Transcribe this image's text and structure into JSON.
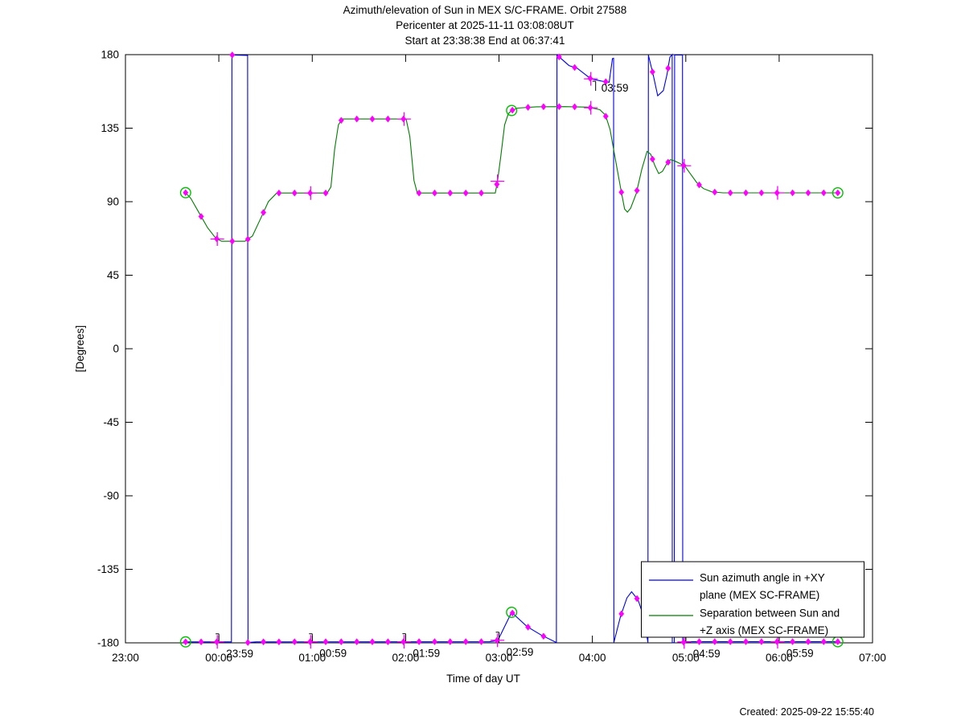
{
  "title": {
    "line1": "Azimuth/elevation of Sun in MEX S/C-FRAME.  Orbit 27588",
    "line2": "Pericenter at 2025-11-11 03:08:08UT",
    "line3": "Start at 23:38:38 End at 06:37:41"
  },
  "footer": {
    "created": "Created: 2025-09-22 15:55:40"
  },
  "chart_data": {
    "type": "line",
    "xlabel": "Time of day UT",
    "ylabel": "[Degrees]",
    "x_axis_hours_span": 8,
    "x_tick_hours": [
      0,
      1,
      2,
      3,
      4,
      5,
      6,
      7,
      8
    ],
    "x_tick_labels": [
      "23:00",
      "00:00",
      "01:00",
      "02:00",
      "03:00",
      "04:00",
      "05:00",
      "06:00",
      "07:00"
    ],
    "ylim": [
      -180,
      180
    ],
    "y_ticks": [
      -180,
      -135,
      -90,
      -45,
      0,
      45,
      90,
      135,
      180
    ],
    "colors": {
      "azimuth": "#0000ee",
      "separation": "#007d00",
      "marker": "#ff00ff",
      "event": "#00c000"
    },
    "series": [
      {
        "name": "azimuth",
        "legend": [
          "Sun azimuth angle in +XY",
          "plane (MEX SC-FRAME)"
        ],
        "color_key": "azimuth",
        "points": [
          [
            0.644,
            -179.4
          ],
          [
            1.135,
            -179.4
          ],
          [
            1.14,
            179.8
          ],
          [
            1.308,
            179.5
          ],
          [
            1.312,
            -179.8
          ],
          [
            1.4,
            -179.4
          ],
          [
            3.9,
            -179.3
          ],
          [
            3.955,
            -178.9
          ],
          [
            3.99,
            -178.3
          ],
          [
            4.1356,
            -161.3
          ],
          [
            4.3,
            -170
          ],
          [
            4.45,
            -175.2
          ],
          [
            4.615,
            -179.8
          ],
          [
            4.621,
            179.8
          ],
          [
            4.75,
            173.3
          ],
          [
            4.84,
            171.6
          ],
          [
            4.9833,
            165.2
          ],
          [
            5.1,
            163.8
          ],
          [
            5.18,
            163.1
          ],
          [
            5.215,
            177.6
          ],
          [
            5.227,
            177.8
          ],
          [
            5.231,
            -179.7
          ],
          [
            5.3,
            -164
          ],
          [
            5.37,
            -152.5
          ],
          [
            5.42,
            -148.7
          ],
          [
            5.49,
            -153.8
          ],
          [
            5.55,
            -164
          ],
          [
            5.595,
            -179.7
          ],
          [
            5.6,
            179.7
          ],
          [
            5.65,
            168
          ],
          [
            5.7,
            154.8
          ],
          [
            5.76,
            158
          ],
          [
            5.8,
            168
          ],
          [
            5.83,
            178.4
          ],
          [
            5.855,
            180
          ],
          [
            5.856,
            -180
          ],
          [
            5.877,
            -179.8
          ],
          [
            5.881,
            179.8
          ],
          [
            5.965,
            179.8
          ],
          [
            5.968,
            -179.8
          ],
          [
            5.99,
            -179.3
          ],
          [
            7.6281,
            -179.3
          ]
        ]
      },
      {
        "name": "separation",
        "legend": [
          "Separation between Sun and",
          "+Z axis (MEX SC-FRAME)"
        ],
        "color_key": "separation",
        "points": [
          [
            0.644,
            95.5
          ],
          [
            0.7,
            92
          ],
          [
            0.78,
            84
          ],
          [
            0.88,
            74
          ],
          [
            0.97,
            67.5
          ],
          [
            1.03,
            65.8
          ],
          [
            1.28,
            65.8
          ],
          [
            1.36,
            69
          ],
          [
            1.45,
            80
          ],
          [
            1.53,
            90
          ],
          [
            1.62,
            95.3
          ],
          [
            2.16,
            95.3
          ],
          [
            2.2,
            99
          ],
          [
            2.24,
            122
          ],
          [
            2.28,
            137
          ],
          [
            2.32,
            140.6
          ],
          [
            3.005,
            140.6
          ],
          [
            3.045,
            130
          ],
          [
            3.09,
            103
          ],
          [
            3.125,
            95.3
          ],
          [
            3.96,
            95.3
          ],
          [
            3.985,
            103
          ],
          [
            4.02,
            118
          ],
          [
            4.06,
            137
          ],
          [
            4.1,
            143.8
          ],
          [
            4.1356,
            145.8
          ],
          [
            4.2,
            147.3
          ],
          [
            4.4,
            148.1
          ],
          [
            4.7,
            148.2
          ],
          [
            4.95,
            147.9
          ],
          [
            5.08,
            146.3
          ],
          [
            5.14,
            143
          ],
          [
            5.19,
            134
          ],
          [
            5.24,
            118
          ],
          [
            5.3,
            99
          ],
          [
            5.345,
            85.5
          ],
          [
            5.375,
            83.6
          ],
          [
            5.41,
            86
          ],
          [
            5.47,
            95
          ],
          [
            5.53,
            110
          ],
          [
            5.585,
            120.8
          ],
          [
            5.625,
            119
          ],
          [
            5.67,
            112
          ],
          [
            5.71,
            107.2
          ],
          [
            5.75,
            108.5
          ],
          [
            5.8,
            113.5
          ],
          [
            5.835,
            115.7
          ],
          [
            5.88,
            115
          ],
          [
            5.94,
            113.3
          ],
          [
            5.99,
            111.8
          ],
          [
            6.05,
            107
          ],
          [
            6.12,
            101.5
          ],
          [
            6.19,
            98
          ],
          [
            6.28,
            96
          ],
          [
            6.4,
            95.4
          ],
          [
            7.6281,
            95.4
          ]
        ]
      }
    ],
    "markers": {
      "start_hour": 0.644,
      "end_hour": 7.6281,
      "diamond_interval_hours": 0.166667,
      "hourly_plus_hours": [
        0.9833,
        1.9833,
        2.9833,
        3.9833,
        4.9833,
        5.9833,
        6.9833
      ],
      "event_hours": [
        0.644,
        4.1356,
        7.6281
      ]
    },
    "annotations": [
      {
        "label": "23:59",
        "t": 0.9833,
        "side": "bottom"
      },
      {
        "label": "00:59",
        "t": 1.9833,
        "side": "bottom"
      },
      {
        "label": "01:59",
        "t": 2.9833,
        "side": "bottom"
      },
      {
        "label": "02:59",
        "t": 3.9833,
        "side": "bottom"
      },
      {
        "label": "03:59",
        "t": 4.9833,
        "side": "top"
      },
      {
        "label": "04:59",
        "t": 5.9833,
        "side": "bottom"
      },
      {
        "label": "05:59",
        "t": 6.9833,
        "side": "bottom"
      }
    ],
    "legend_position": "south-east-inside"
  }
}
